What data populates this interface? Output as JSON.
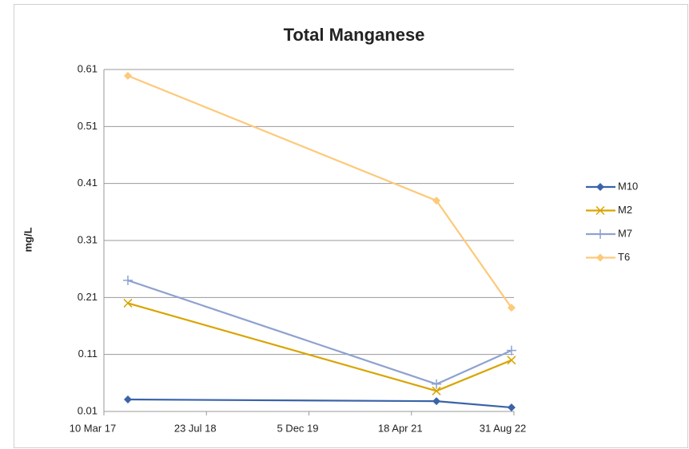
{
  "chart_data": {
    "type": "line",
    "title": "Total Manganese",
    "y_label": "mg/L",
    "x": [
      "2017-07-05",
      "2021-08-18",
      "2022-08-19"
    ],
    "xlim": [
      "2017-03-10",
      "2022-08-31"
    ],
    "xticks": [
      {
        "value": "2017-03-10",
        "label": "10 Mar 17"
      },
      {
        "value": "2018-07-23",
        "label": "23 Jul 18"
      },
      {
        "value": "2019-12-05",
        "label": "5 Dec 19"
      },
      {
        "value": "2021-04-18",
        "label": "18 Apr 21"
      },
      {
        "value": "2022-08-31",
        "label": "31 Aug 22"
      }
    ],
    "ylim": [
      0.01,
      0.61
    ],
    "yticks": [
      0.01,
      0.11,
      0.21,
      0.31,
      0.41,
      0.51,
      0.61
    ],
    "grid": true,
    "series": [
      {
        "name": "M10",
        "color": "#3a63a8",
        "marker": "diamond",
        "values": [
          0.031,
          0.028,
          0.017
        ]
      },
      {
        "name": "M2",
        "color": "#d9a400",
        "marker": "x",
        "values": [
          0.2,
          0.046,
          0.1
        ]
      },
      {
        "name": "M7",
        "color": "#8ea2cf",
        "marker": "plus",
        "values": [
          0.24,
          0.058,
          0.117
        ]
      },
      {
        "name": "T6",
        "color": "#fdc97a",
        "marker": "diamond",
        "values": [
          0.599,
          0.38,
          0.192
        ]
      }
    ]
  }
}
